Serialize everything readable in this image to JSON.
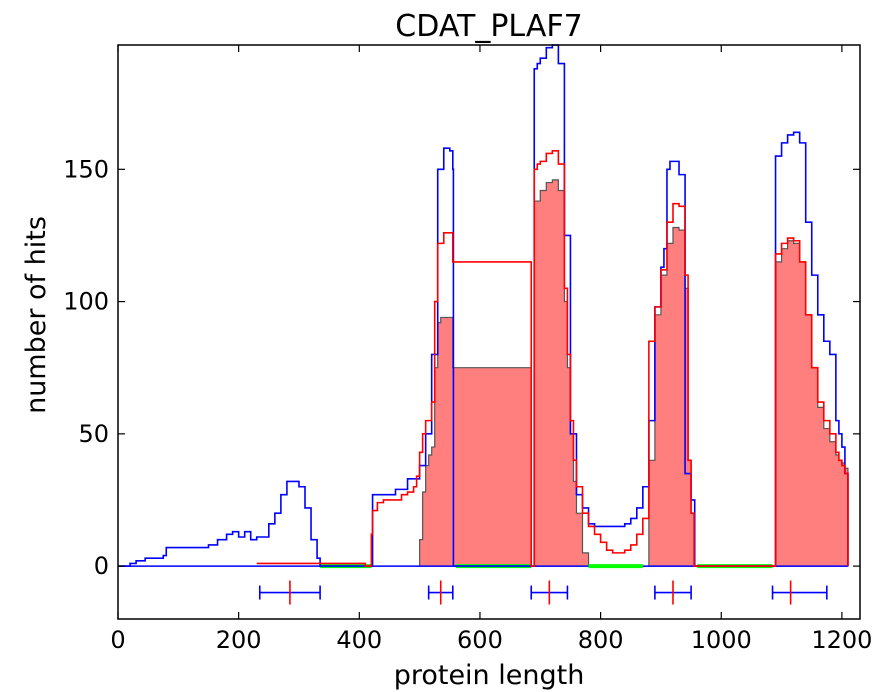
{
  "chart_data": {
    "type": "area",
    "title": "CDAT_PLAF7",
    "xlabel": "protein length",
    "ylabel": "number of hits",
    "xlim": [
      0,
      1230
    ],
    "ylim": [
      -20,
      197
    ],
    "xticks": [
      0,
      200,
      400,
      600,
      800,
      1000,
      1200
    ],
    "yticks": [
      0,
      50,
      100,
      150
    ],
    "grid": false,
    "legend": "none",
    "colors": {
      "blue": "#0000ff",
      "red": "#ff0000",
      "fill": "#ff7f7f",
      "fill_edge": "#555555",
      "green": "#00ff00"
    },
    "series": [
      {
        "color": "blue",
        "style": "line",
        "x": [
          0,
          20,
          30,
          45,
          60,
          75,
          80,
          90,
          100,
          120,
          150,
          165,
          180,
          190,
          200,
          210,
          220,
          230,
          240,
          250,
          260,
          270,
          280,
          290,
          300,
          310,
          320,
          330,
          335,
          420,
          422,
          440,
          460,
          480,
          500,
          510,
          520,
          530,
          540,
          550,
          555,
          556,
          685,
          690,
          695,
          700,
          710,
          720,
          730,
          740,
          750,
          760,
          770,
          780,
          790,
          800,
          820,
          840,
          850,
          860,
          870,
          880,
          890,
          900,
          905,
          910,
          915,
          920,
          930,
          940,
          950,
          955,
          956,
          1085,
          1090,
          1100,
          1110,
          1120,
          1130,
          1140,
          1150,
          1160,
          1170,
          1180,
          1190,
          1195,
          1200,
          1205,
          1210
        ],
        "y": [
          0,
          1,
          2,
          3,
          3,
          4,
          7,
          7,
          7,
          7,
          8,
          10,
          12,
          13,
          11,
          13,
          10,
          11,
          11,
          16,
          20,
          27,
          32,
          32,
          30,
          22,
          10,
          3,
          0,
          0,
          27,
          27,
          29,
          33,
          38,
          50,
          80,
          150,
          158,
          157,
          150,
          0,
          0,
          188,
          190,
          192,
          196,
          197,
          190,
          125,
          50,
          27,
          22,
          16,
          15,
          15,
          15,
          16,
          18,
          22,
          30,
          55,
          98,
          113,
          120,
          150,
          153,
          153,
          148,
          35,
          25,
          25,
          0,
          0,
          155,
          160,
          163,
          164,
          160,
          130,
          110,
          95,
          85,
          80,
          55,
          50,
          45,
          35,
          0
        ]
      },
      {
        "color": "red",
        "style": "line",
        "x": [
          230,
          335,
          410,
          420,
          422,
          430,
          440,
          450,
          460,
          470,
          480,
          490,
          495,
          500,
          505,
          510,
          520,
          525,
          530,
          540,
          550,
          555,
          685,
          690,
          695,
          700,
          710,
          720,
          730,
          740,
          745,
          750,
          755,
          760,
          770,
          780,
          790,
          800,
          810,
          820,
          830,
          840,
          850,
          860,
          870,
          880,
          890,
          900,
          910,
          920,
          930,
          940,
          945,
          950,
          955,
          1085,
          1090,
          1100,
          1110,
          1120,
          1130,
          1140,
          1150,
          1160,
          1170,
          1180,
          1190,
          1195,
          1200,
          1205,
          1210
        ],
        "y": [
          1,
          1,
          0,
          12,
          21,
          24,
          25,
          25,
          25,
          27,
          28,
          30,
          34,
          43,
          50,
          55,
          62,
          100,
          122,
          126,
          126,
          115,
          0,
          150,
          152,
          153,
          156,
          157,
          152,
          105,
          80,
          55,
          40,
          30,
          20,
          15,
          12,
          9,
          6,
          5,
          5,
          6,
          8,
          12,
          18,
          85,
          98,
          112,
          130,
          137,
          136,
          110,
          40,
          20,
          0,
          0,
          118,
          122,
          124,
          123,
          115,
          95,
          75,
          62,
          55,
          50,
          43,
          40,
          38,
          35,
          0
        ]
      },
      {
        "color": "fill",
        "style": "filled",
        "x": [
          495,
          500,
          505,
          510,
          515,
          520,
          525,
          530,
          535,
          550,
          555,
          685,
          690,
          700,
          710,
          720,
          730,
          740,
          745,
          750,
          755,
          760,
          770,
          780,
          870,
          880,
          890,
          900,
          910,
          920,
          930,
          940,
          945,
          950,
          955,
          1085,
          1090,
          1100,
          1110,
          1120,
          1130,
          1140,
          1150,
          1160,
          1170,
          1180,
          1190,
          1195,
          1200,
          1205,
          1210
        ],
        "y": [
          0,
          10,
          28,
          38,
          42,
          45,
          75,
          92,
          94,
          94,
          75,
          0,
          138,
          142,
          145,
          146,
          142,
          100,
          75,
          50,
          32,
          20,
          5,
          0,
          0,
          40,
          95,
          110,
          122,
          128,
          127,
          105,
          40,
          20,
          0,
          0,
          115,
          120,
          123,
          122,
          115,
          95,
          75,
          60,
          52,
          47,
          42,
          40,
          39,
          37,
          0
        ]
      },
      {
        "color": "green",
        "style": "baseline",
        "segments": [
          [
            335,
            420
          ],
          [
            560,
            685
          ],
          [
            780,
            870
          ],
          [
            960,
            1085
          ]
        ]
      }
    ],
    "error_bars": [
      {
        "x": 285,
        "min": 235,
        "max": 335
      },
      {
        "x": 535,
        "min": 515,
        "max": 555
      },
      {
        "x": 715,
        "min": 685,
        "max": 745
      },
      {
        "x": 920,
        "min": 890,
        "max": 950
      },
      {
        "x": 1115,
        "min": 1085,
        "max": 1175
      }
    ]
  }
}
